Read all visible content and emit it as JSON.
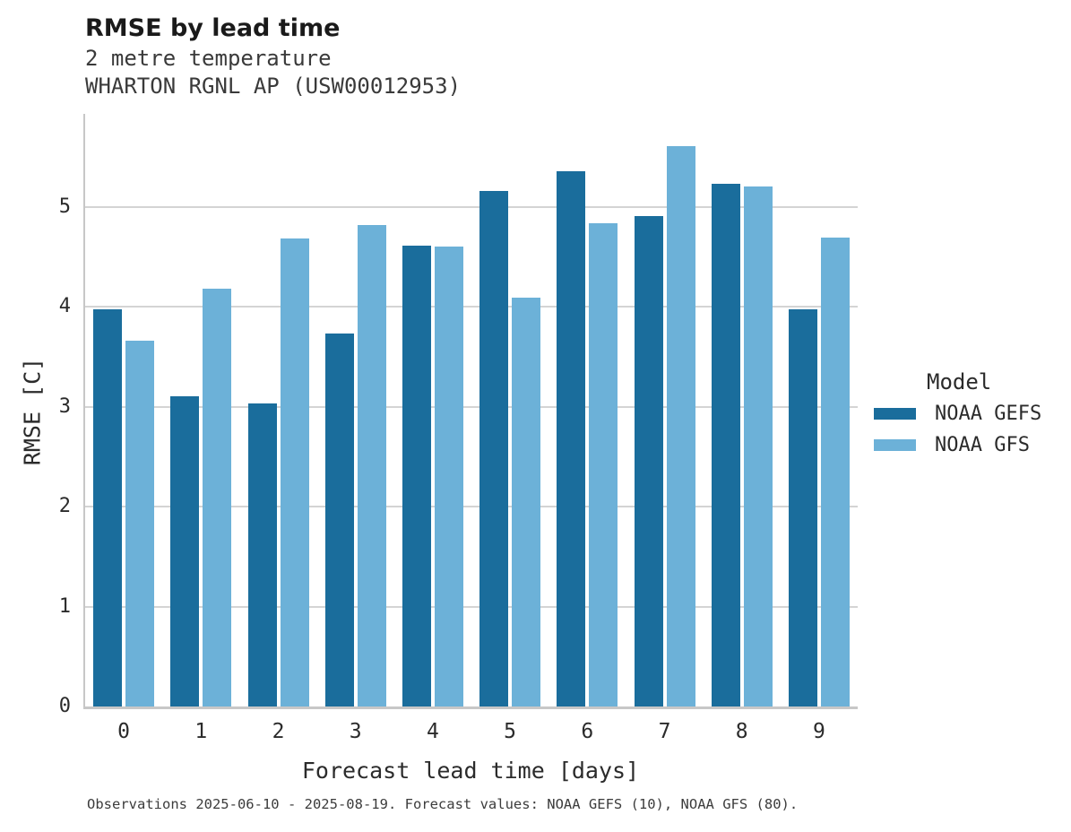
{
  "header": {
    "title": "RMSE by lead time",
    "subtitle_line1": "2 metre temperature",
    "subtitle_line2": "WHARTON RGNL AP (USW00012953)"
  },
  "chart_data": {
    "type": "bar",
    "title": "RMSE by lead time",
    "subtitle": [
      "2 metre temperature",
      "WHARTON RGNL AP (USW00012953)"
    ],
    "xlabel": "Forecast lead time [days]",
    "ylabel": "RMSE [C]",
    "categories": [
      "0",
      "1",
      "2",
      "3",
      "4",
      "5",
      "6",
      "7",
      "8",
      "9"
    ],
    "series": [
      {
        "name": "NOAA GEFS",
        "color": "#1a6d9c",
        "values": [
          3.97,
          3.1,
          3.03,
          3.73,
          4.61,
          5.16,
          5.36,
          4.91,
          5.23,
          3.97
        ]
      },
      {
        "name": "NOAA GFS",
        "color": "#6cb1d8",
        "values": [
          3.66,
          4.18,
          4.68,
          4.82,
          4.6,
          4.09,
          4.84,
          5.61,
          5.2,
          4.69
        ]
      }
    ],
    "ylim": [
      0,
      5.93
    ],
    "yticks": [
      0,
      1,
      2,
      3,
      4,
      5
    ],
    "grid": true,
    "legend_title": "Model",
    "legend_position": "right-center"
  },
  "caption": "Observations 2025-06-10 - 2025-08-19. Forecast values: NOAA GEFS (10), NOAA GFS (80).",
  "colors": {
    "series_dark": "#1a6d9c",
    "series_light": "#6cb1d8",
    "gridline": "#d4d4d4",
    "spine": "#c7c7c7",
    "text": "#2b2b2b"
  }
}
